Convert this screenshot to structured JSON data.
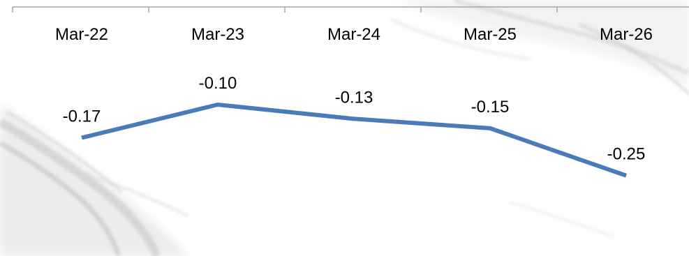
{
  "chart_data": {
    "type": "line",
    "categories": [
      "Mar-22",
      "Mar-23",
      "Mar-24",
      "Mar-25",
      "Mar-26"
    ],
    "series": [
      {
        "values": [
          -0.17,
          -0.1,
          -0.13,
          -0.15,
          -0.25
        ],
        "data_labels": [
          "-0.17",
          "-0.10",
          "-0.13",
          "-0.15",
          "-0.25"
        ],
        "color": "#4a7ab8"
      }
    ],
    "x_axis_position": "top",
    "grid": false,
    "legend": "none"
  },
  "colors": {
    "axis": "#a6a6a6",
    "line": "#4a7ab8",
    "marble_texture": "#c8c8c8"
  }
}
